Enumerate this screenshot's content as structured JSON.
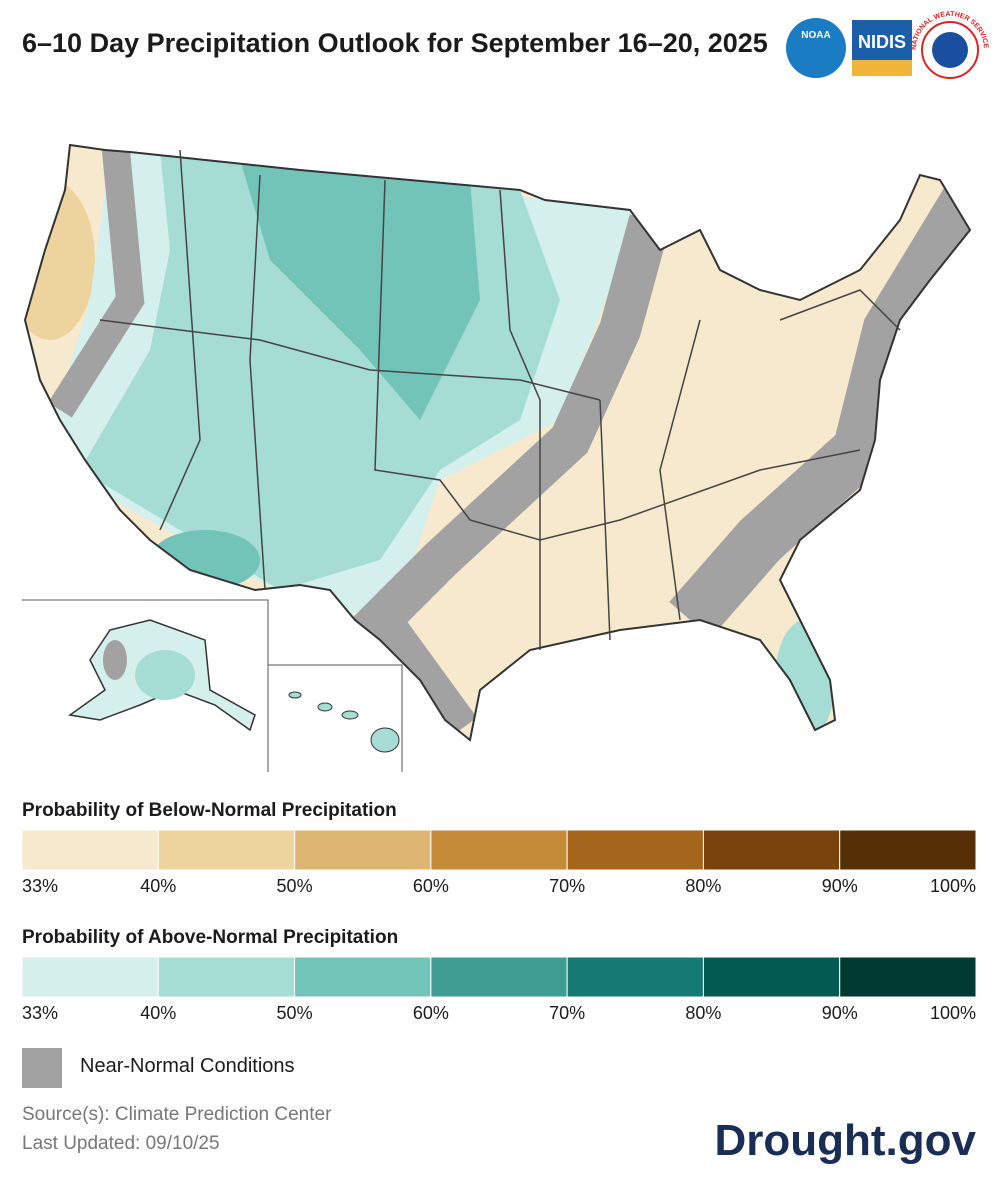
{
  "header": {
    "title": "6–10 Day Precipitation Outlook for September 16–20, 2025",
    "logos": [
      "NOAA",
      "NIDIS",
      "NATIONAL WEATHER SERVICE"
    ]
  },
  "legends": [
    {
      "title": "Probability of Below-Normal Precipitation",
      "colors": [
        "#f6e9cd",
        "#edd49f",
        "#ddb772",
        "#c58b38",
        "#a5651c",
        "#7a420c",
        "#553006"
      ],
      "labels": [
        "33%",
        "40%",
        "50%",
        "60%",
        "70%",
        "80%",
        "90%",
        "100%"
      ]
    },
    {
      "title": "Probability of Above-Normal Precipitation",
      "colors": [
        "#d4efec",
        "#a5ddd4",
        "#73c4b8",
        "#3f9e94",
        "#157a72",
        "#045b52",
        "#003a33"
      ],
      "labels": [
        "33%",
        "40%",
        "50%",
        "60%",
        "70%",
        "80%",
        "90%",
        "100%"
      ]
    }
  ],
  "near_normal": {
    "label": "Near-Normal Conditions",
    "color": "#a2a2a2"
  },
  "footer": {
    "source": "Source(s): Climate Prediction Center",
    "updated": "Last Updated: 09/10/25",
    "brand": "Drought.gov"
  }
}
